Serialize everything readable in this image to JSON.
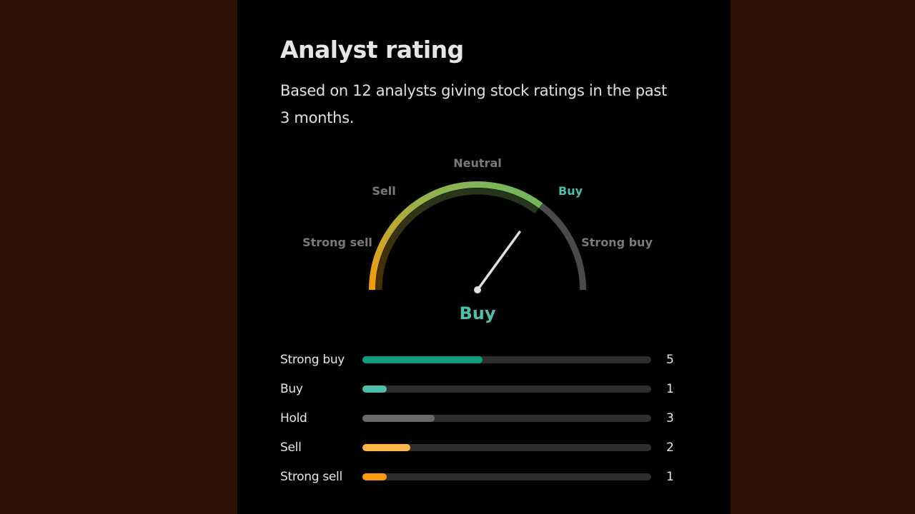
{
  "title": "Analyst rating",
  "subtitle": "Based on 12 analysts giving stock ratings in the past 3 months.",
  "gauge": {
    "labels": {
      "strong_sell": "Strong sell",
      "sell": "Sell",
      "neutral": "Neutral",
      "buy": "Buy",
      "strong_buy": "Strong buy"
    },
    "active_label": "buy",
    "result": "Buy",
    "needle_fraction": 0.7,
    "colors": {
      "start": "#f59b0b",
      "mid": "#9bb04a",
      "end": "#6bb85f",
      "rest": "#4a4a4a",
      "needle": "#e0e0e0",
      "accent": "#4fbfad"
    }
  },
  "total_analysts": 12,
  "ratings": [
    {
      "label": "Strong buy",
      "count": 5,
      "color": "#0f9b7e"
    },
    {
      "label": "Buy",
      "count": 1,
      "color": "#4fbfad"
    },
    {
      "label": "Hold",
      "count": 3,
      "color": "#6a6a6a"
    },
    {
      "label": "Sell",
      "count": 2,
      "color": "#ffb547"
    },
    {
      "label": "Strong sell",
      "count": 1,
      "color": "#ff9a0a"
    }
  ]
}
